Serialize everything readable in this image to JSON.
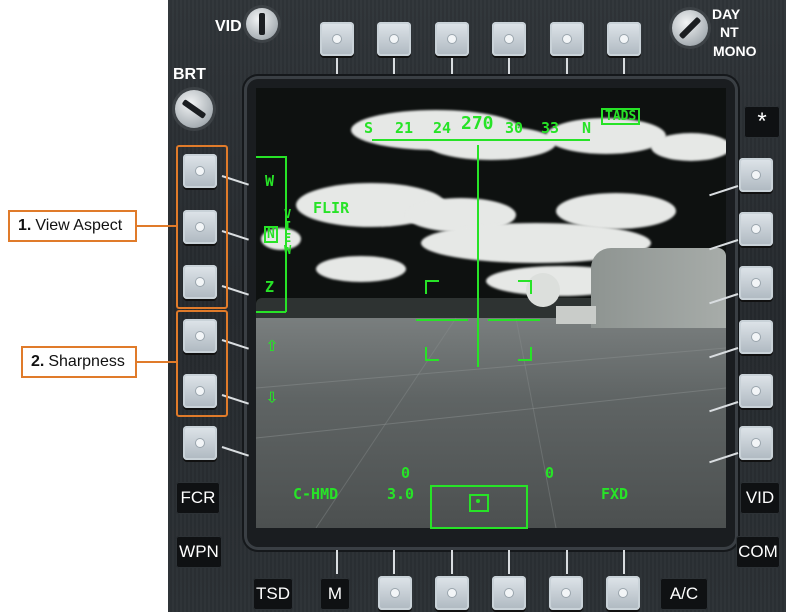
{
  "bezel": {
    "vid_knob_label": "VID",
    "brt_knob_label": "BRT",
    "mode_knob_labels": [
      "DAY",
      "NT",
      "MONO"
    ],
    "asterisk_label": "*",
    "left_text_buttons": [
      "FCR",
      "WPN"
    ],
    "right_text_buttons": [
      "VID",
      "COM"
    ],
    "bottom_text_buttons": [
      "TSD",
      "M",
      "A/C"
    ]
  },
  "display": {
    "heading_tape": [
      "S",
      "21",
      "24",
      "270",
      "30",
      "33",
      "N"
    ],
    "tads_label": "TADS",
    "sensor_label": "FLIR",
    "view_options": [
      "W",
      "N",
      "Z"
    ],
    "view_vertical_label": "VIEW",
    "sharpness_up_icon": "⇧",
    "sharpness_down_icon": "⇩",
    "cue_label": "C-HMD",
    "zoom_value": "3.0",
    "value_left": "0",
    "value_right": "0",
    "fxd_label": "FXD"
  },
  "callouts": [
    {
      "number": "1.",
      "label": "View Aspect"
    },
    {
      "number": "2.",
      "label": "Sharpness"
    }
  ]
}
